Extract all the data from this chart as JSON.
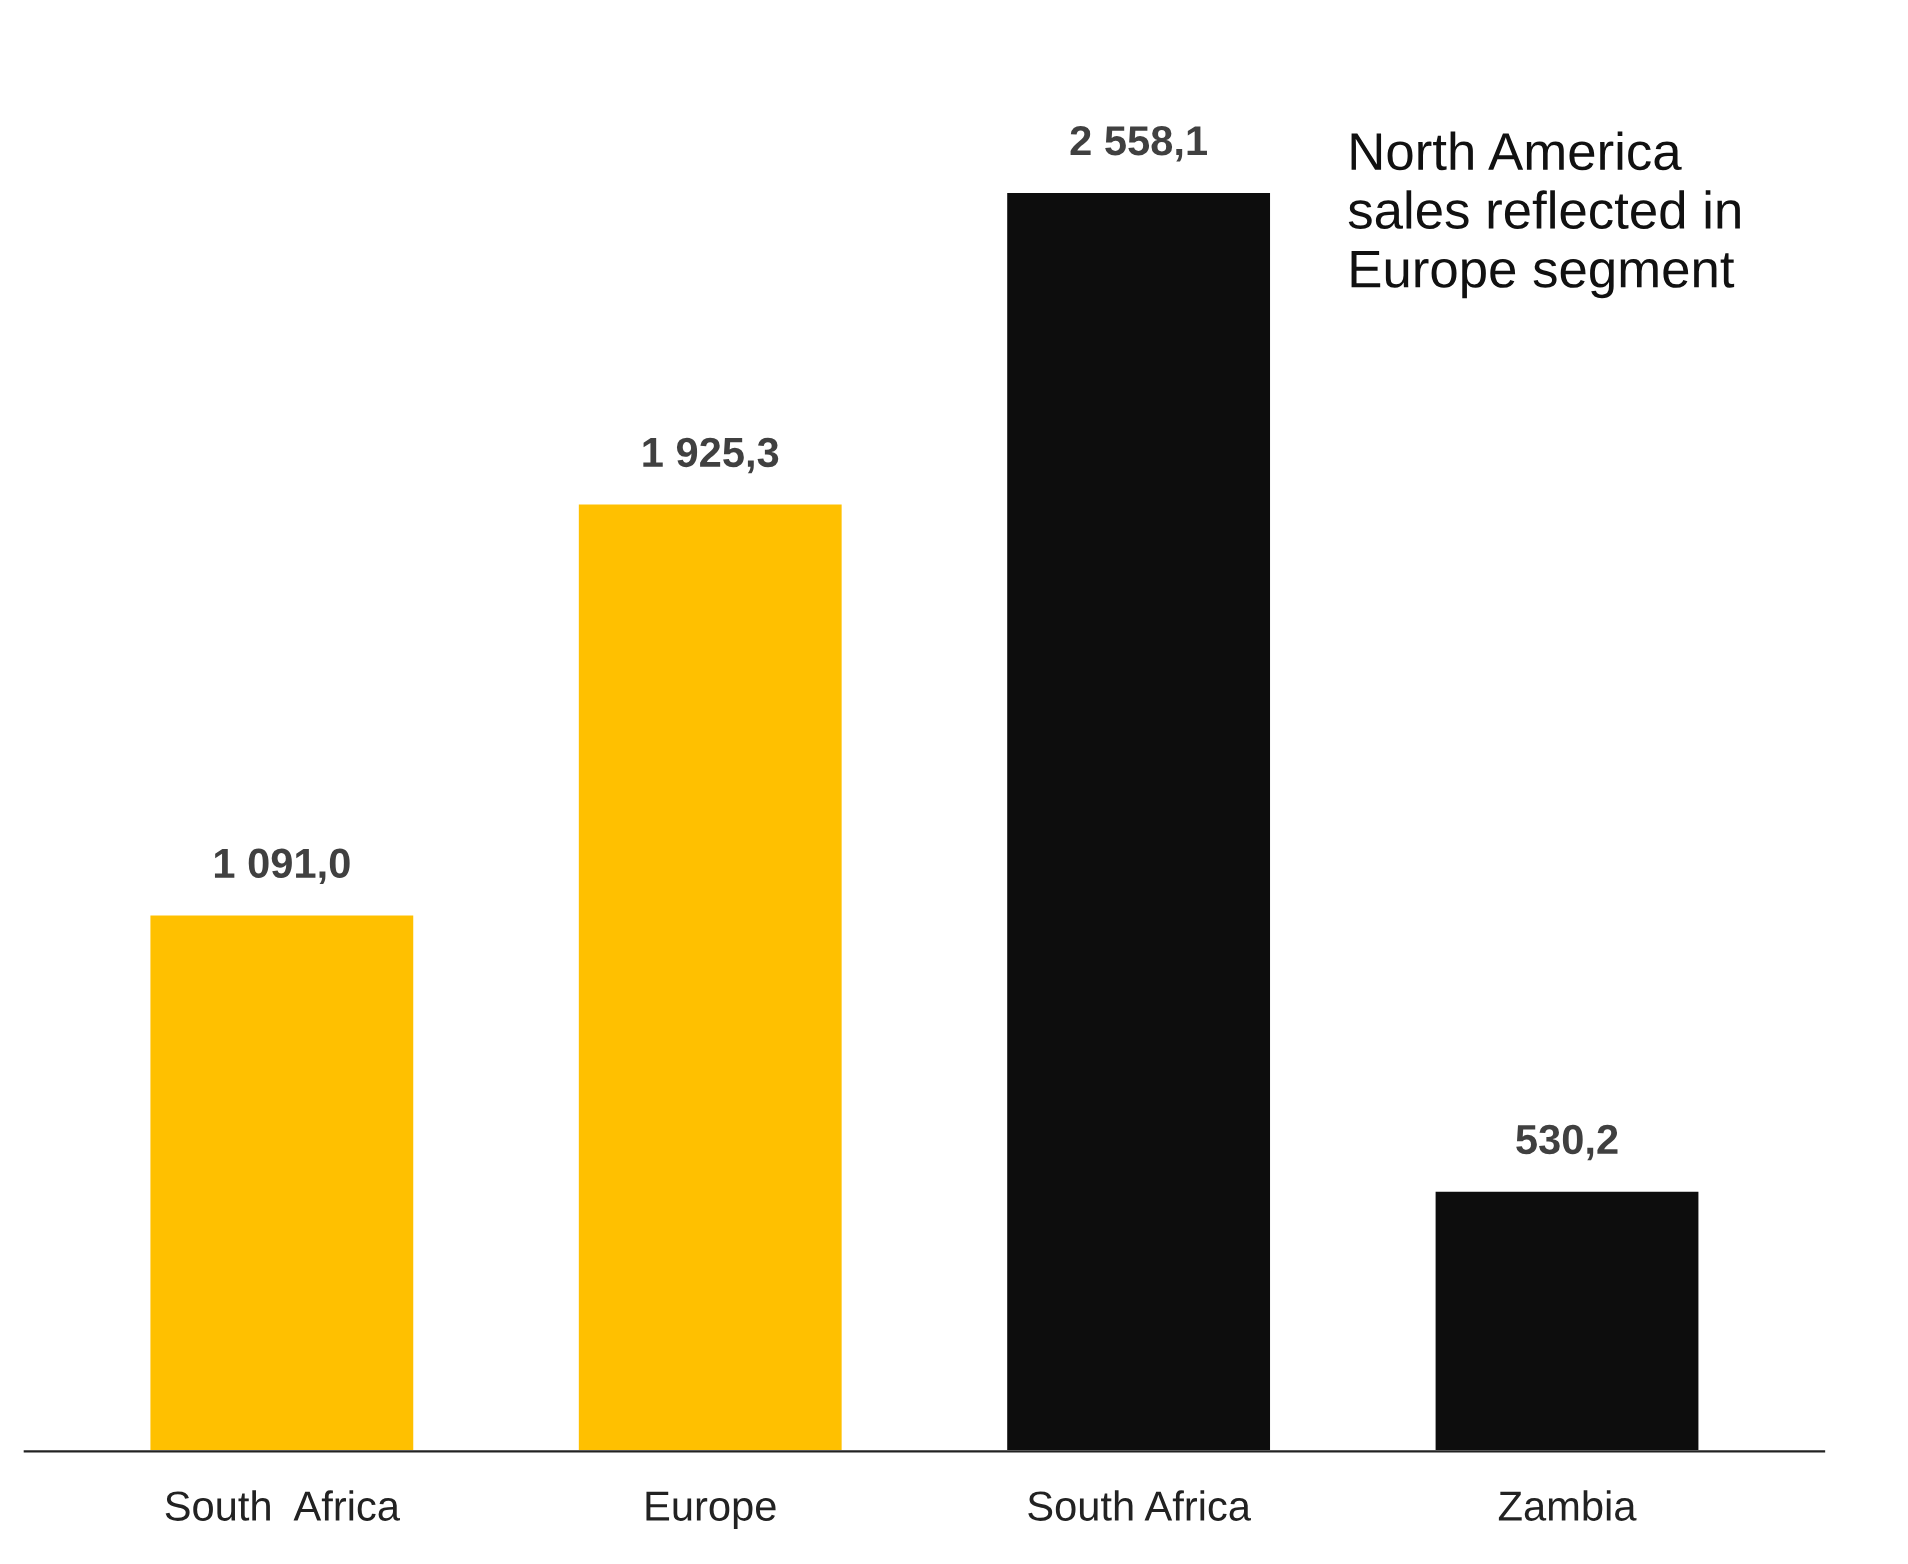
{
  "chart_data": {
    "type": "bar",
    "categories": [
      "South  Africa",
      "Europe",
      "South Africa",
      "Zambia"
    ],
    "values": [
      1091.0,
      1925.3,
      2558.1,
      530.2
    ],
    "colors": [
      "#ffc000",
      "#ffc000",
      "#0d0d0d",
      "#0d0d0d"
    ],
    "value_labels": [
      "1 091,0",
      "1 925,3",
      "2 558,1",
      "530,2"
    ],
    "annotations": [
      "North America\nsales reflected in\nEurope segment"
    ],
    "grid": false,
    "legend": false
  }
}
